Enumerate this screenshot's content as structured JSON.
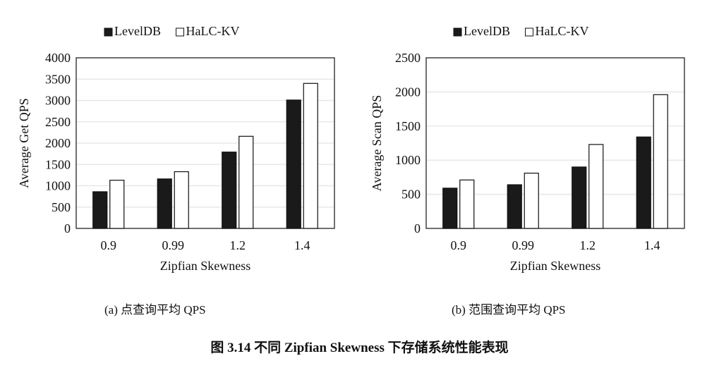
{
  "chart_data": [
    {
      "type": "bar",
      "categories": [
        "0.9",
        "0.99",
        "1.2",
        "1.4"
      ],
      "series": [
        {
          "name": "LevelDB",
          "values": [
            860,
            1160,
            1790,
            3010
          ]
        },
        {
          "name": "HaLC-KV",
          "values": [
            1130,
            1330,
            2160,
            3400
          ]
        }
      ],
      "xlabel": "Zipfian Skewness",
      "ylabel": "Average Get QPS",
      "ylim": [
        0,
        4000
      ],
      "yticks": [
        "0",
        "500",
        "1000",
        "1500",
        "2000",
        "2500",
        "3000",
        "3500",
        "4000"
      ],
      "legend": "top",
      "grid": true,
      "caption": "(a) 点查询平均 QPS"
    },
    {
      "type": "bar",
      "categories": [
        "0.9",
        "0.99",
        "1.2",
        "1.4"
      ],
      "series": [
        {
          "name": "LevelDB",
          "values": [
            590,
            640,
            900,
            1340
          ]
        },
        {
          "name": "HaLC-KV",
          "values": [
            710,
            810,
            1230,
            1960
          ]
        }
      ],
      "xlabel": "Zipfian Skewness",
      "ylabel": "Average Scan QPS",
      "ylim": [
        0,
        2500
      ],
      "yticks": [
        "0",
        "500",
        "1000",
        "1500",
        "2000",
        "2500"
      ],
      "legend": "top",
      "grid": true,
      "caption": "(b) 范围查询平均 QPS"
    }
  ],
  "colors": {
    "LevelDB": "#1a1a1a",
    "HaLC-KV": "#ffffff",
    "grid": "#e8e8e8",
    "axis": "#222222"
  },
  "figure_caption": "图 3.14    不同 Zipfian Skewness 下存储系统性能表现"
}
